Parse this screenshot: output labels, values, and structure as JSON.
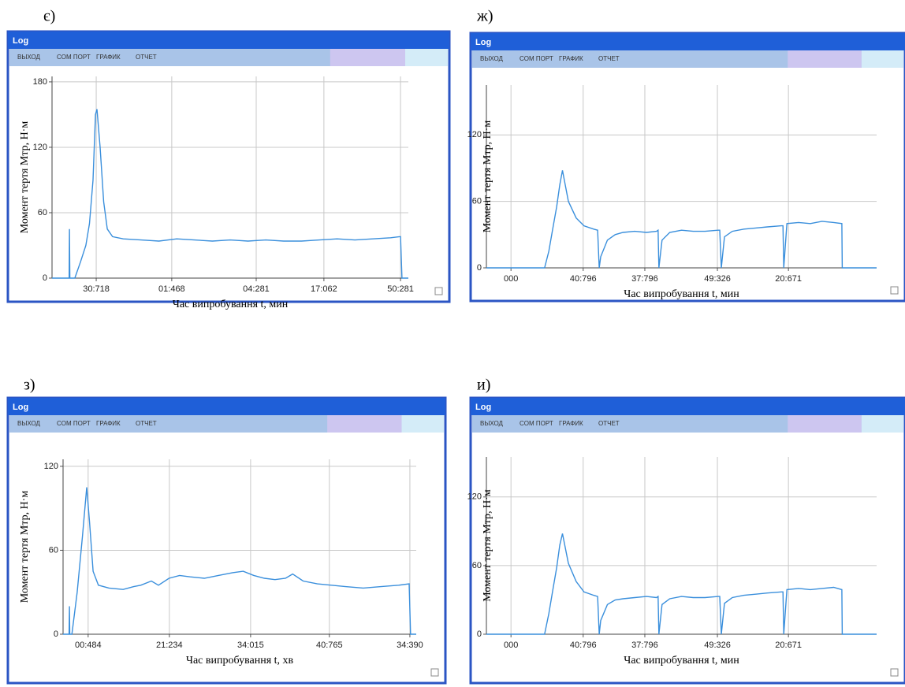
{
  "chart_data": [
    {
      "type": "line",
      "panel_label": "є)",
      "window_title": "Log",
      "menu": [
        "ВЫХОД",
        "COM ПОРТ",
        "ГРАФИК",
        "ОТЧЕТ"
      ],
      "x_label": "Час випробування t, мин",
      "y_label": "Момент тертя Mтр, Н·м",
      "color": "#3a8fdc",
      "grid": true,
      "xlim": [
        0,
        100
      ],
      "ylim": [
        0,
        185
      ],
      "xticks": [
        {
          "value": 12.4,
          "label": "30:718"
        },
        {
          "value": 33.6,
          "label": "01:468"
        },
        {
          "value": 57.3,
          "label": "04:281"
        },
        {
          "value": 76.3,
          "label": "17:062"
        },
        {
          "value": 97.8,
          "label": "50:281"
        }
      ],
      "yticks": [
        0,
        60,
        120,
        180
      ],
      "x": [
        0,
        4.8,
        4.9,
        5.0,
        6.4,
        8,
        9.5,
        10.5,
        11.5,
        12.2,
        12.6,
        13.5,
        14.5,
        15.5,
        17,
        20,
        25,
        30,
        35,
        40,
        45,
        50,
        55,
        60,
        65,
        70,
        75,
        80,
        85,
        90,
        95,
        97.5,
        97.8,
        98.2,
        100
      ],
      "values": [
        0,
        0,
        45,
        0,
        0,
        15,
        30,
        50,
        90,
        150,
        155,
        120,
        70,
        45,
        38,
        36,
        35,
        34,
        36,
        35,
        34,
        35,
        34,
        35,
        34,
        34,
        35,
        36,
        35,
        36,
        37,
        38,
        38,
        0,
        0
      ]
    },
    {
      "type": "line",
      "panel_label": "ж)",
      "window_title": "Log",
      "menu": [
        "ВЫХОД",
        "COM ПОРТ",
        "ГРАФИК",
        "ОТЧЕТ"
      ],
      "x_label": "Час випробування t, мин",
      "y_label": "Момент тертя Mтр, Н·м",
      "color": "#3a8fdc",
      "grid": true,
      "xlim": [
        0,
        100
      ],
      "ylim": [
        0,
        165
      ],
      "xticks": [
        {
          "value": 6.3,
          "label": "000"
        },
        {
          "value": 24.8,
          "label": "40:796"
        },
        {
          "value": 40.6,
          "label": "37:796"
        },
        {
          "value": 59.2,
          "label": "49:326"
        },
        {
          "value": 77.4,
          "label": "20:671"
        }
      ],
      "yticks": [
        0,
        60,
        120
      ],
      "x": [
        0,
        14.9,
        16,
        17,
        18,
        18.8,
        19.5,
        21,
        23,
        25,
        27.5,
        28.5,
        28.9,
        29.3,
        31,
        33,
        35,
        38,
        41,
        43.6,
        44.0,
        44.2,
        45,
        47,
        50,
        53,
        56,
        59.4,
        59.8,
        60.2,
        61,
        63,
        66,
        69,
        72,
        75.6,
        76.0,
        76.2,
        77,
        80,
        83,
        86,
        89,
        91.1,
        91.2,
        100
      ],
      "values": [
        0,
        0,
        15,
        35,
        55,
        75,
        88,
        60,
        45,
        38,
        35,
        34,
        0,
        10,
        25,
        30,
        32,
        33,
        32,
        33,
        34,
        0,
        25,
        32,
        34,
        33,
        33,
        34,
        34,
        0,
        28,
        33,
        35,
        36,
        37,
        38,
        38,
        0,
        40,
        41,
        40,
        42,
        41,
        40,
        0,
        0
      ]
    },
    {
      "type": "line",
      "panel_label": "з)",
      "window_title": "Log",
      "menu": [
        "ВЫХОД",
        "COM ПОРТ",
        "ГРАФИК",
        "ОТЧЕТ"
      ],
      "x_label": "Час випробування t, хв",
      "y_label": "Момент тертя Mтр, Н·м",
      "color": "#3a8fdc",
      "grid": true,
      "xlim": [
        0,
        100
      ],
      "ylim": [
        0,
        125
      ],
      "xticks": [
        {
          "value": 7.1,
          "label": "00:484"
        },
        {
          "value": 30.1,
          "label": "21:234"
        },
        {
          "value": 53.1,
          "label": "34:015"
        },
        {
          "value": 75.4,
          "label": "40:765"
        },
        {
          "value": 98.2,
          "label": "34:390"
        }
      ],
      "yticks": [
        0,
        60,
        120
      ],
      "x": [
        0,
        1.7,
        1.8,
        1.9,
        2.5,
        4,
        5.5,
        6.7,
        7.5,
        8.5,
        10,
        13,
        17,
        20,
        22,
        25,
        27,
        30,
        33,
        36,
        40,
        44,
        48,
        51,
        54,
        57,
        60,
        63,
        65,
        68,
        72,
        76,
        80,
        85,
        90,
        95,
        98,
        98.4,
        100
      ],
      "values": [
        0,
        0,
        20,
        0,
        0,
        30,
        70,
        105,
        80,
        45,
        35,
        33,
        32,
        34,
        35,
        38,
        35,
        40,
        42,
        41,
        40,
        42,
        44,
        45,
        42,
        40,
        39,
        40,
        43,
        38,
        36,
        35,
        34,
        33,
        34,
        35,
        36,
        0,
        0
      ]
    },
    {
      "type": "line",
      "panel_label": "и)",
      "window_title": "Log",
      "menu": [
        "ВЫХОД",
        "COM ПОРТ",
        "ГРАФИК",
        "ОТЧЕТ"
      ],
      "x_label": "Час випробування t, мин",
      "y_label": "Момент тертя Mтр, Н·м",
      "color": "#3a8fdc",
      "grid": true,
      "xlim": [
        0,
        100
      ],
      "ylim": [
        0,
        155
      ],
      "xticks": [
        {
          "value": 6.3,
          "label": "000"
        },
        {
          "value": 24.8,
          "label": "40:796"
        },
        {
          "value": 40.6,
          "label": "37:796"
        },
        {
          "value": 59.2,
          "label": "49:326"
        },
        {
          "value": 77.4,
          "label": "20:671"
        }
      ],
      "yticks": [
        0,
        60,
        120
      ],
      "x": [
        0,
        14.9,
        16,
        17,
        18,
        18.8,
        19.5,
        21,
        23,
        25,
        27.5,
        28.5,
        28.9,
        29.3,
        31,
        33,
        35,
        38,
        41,
        43.6,
        44.0,
        44.2,
        45,
        47,
        50,
        53,
        56,
        59.4,
        59.8,
        60.2,
        61,
        63,
        66,
        69,
        72,
        75.6,
        76.0,
        76.2,
        77,
        80,
        83,
        86,
        89,
        91.1,
        91.2,
        100
      ],
      "values": [
        0,
        0,
        18,
        38,
        58,
        78,
        88,
        62,
        46,
        37,
        34,
        33,
        0,
        12,
        26,
        30,
        31,
        32,
        33,
        32,
        33,
        0,
        26,
        31,
        33,
        32,
        32,
        33,
        33,
        0,
        27,
        32,
        34,
        35,
        36,
        37,
        37,
        0,
        39,
        40,
        39,
        40,
        41,
        39,
        0,
        0
      ]
    }
  ]
}
